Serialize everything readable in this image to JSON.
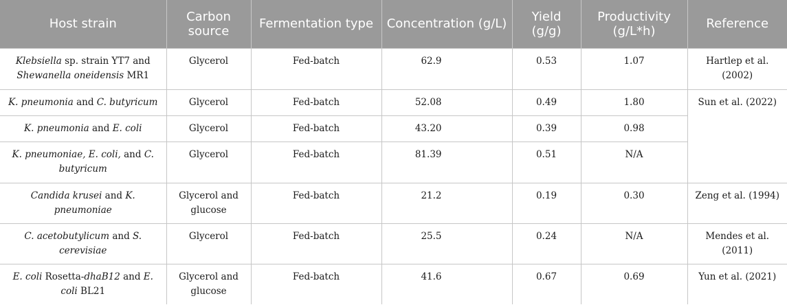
{
  "headers": {
    "host_strain": "Host strain",
    "carbon_source": "Carbon source",
    "fermentation_type": "Fermentation type",
    "concentration": "Concentration (g/L)",
    "yield": "Yield (g/g)",
    "productivity": "Productivity (g/L*h)",
    "reference": "Reference"
  },
  "rows": [
    {
      "host": {
        "p1": "Klebsiella",
        "p2": " sp. strain YT7 and ",
        "p3": "Shewanella oneidensis",
        "p4": " MR1"
      },
      "carbon": "Glycerol",
      "fermentation": "Fed-batch",
      "concentration": "62.9",
      "yield": "0.53",
      "productivity": "1.07",
      "reference": "Hartlep et al. (2002)"
    },
    {
      "host": {
        "p1": "K. pneumonia",
        "p2": " and ",
        "p3": "C. butyricum",
        "p4": ""
      },
      "carbon": "Glycerol",
      "fermentation": "Fed-batch",
      "concentration": "52.08",
      "yield": "0.49",
      "productivity": "1.80",
      "reference": "Sun et al. (2022)"
    },
    {
      "host": {
        "p1": "K. pneumonia",
        "p2": " and ",
        "p3": "E. coli",
        "p4": ""
      },
      "carbon": "Glycerol",
      "fermentation": "Fed-batch",
      "concentration": "43.20",
      "yield": "0.39",
      "productivity": "0.98"
    },
    {
      "host": {
        "p1": "K. pneumoniae, E. coli,",
        "p2": " and ",
        "p3": "C. butyricum",
        "p4": ""
      },
      "carbon": "Glycerol",
      "fermentation": "Fed-batch",
      "concentration": "81.39",
      "yield": "0.51",
      "productivity": "N/A"
    },
    {
      "host": {
        "p1": "Candida krusei",
        "p2": " and ",
        "p3": "K. pneumoniae",
        "p4": ""
      },
      "carbon": "Glycerol and glucose",
      "fermentation": "Fed-batch",
      "concentration": "21.2",
      "yield": "0.19",
      "productivity": "0.30",
      "reference": "Zeng et al. (1994)"
    },
    {
      "host": {
        "p1": "C. acetobutylicum",
        "p2": " and ",
        "p3": "S. cerevisiae",
        "p4": ""
      },
      "carbon": "Glycerol",
      "fermentation": "Fed-batch",
      "concentration": "25.5",
      "yield": "0.24",
      "productivity": "N/A",
      "reference": "Mendes et al. (2011)"
    },
    {
      "host": {
        "p1": "E. coli",
        "p2": " Rosetta-",
        "p3": "dhaB12",
        "p4": " and ",
        "p5": "E. coli",
        "p6": " BL21"
      },
      "carbon": "Glycerol and glucose",
      "fermentation": "Fed-batch",
      "concentration": "41.6",
      "yield": "0.67",
      "productivity": "0.69",
      "reference": "Yun et al. (2021)"
    }
  ]
}
